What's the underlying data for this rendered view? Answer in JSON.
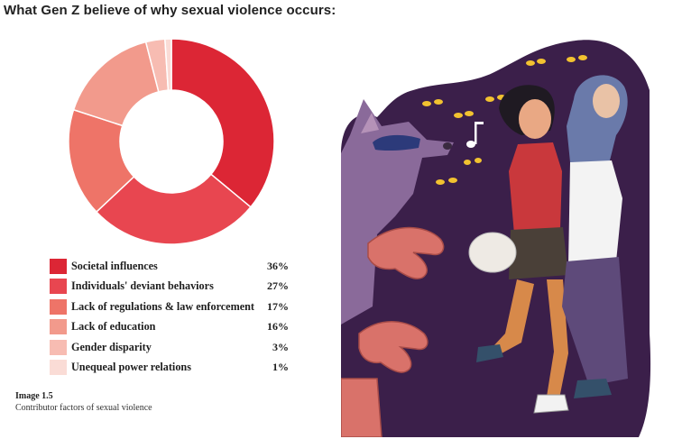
{
  "title": "What Gen Z believe of why sexual violence occurs:",
  "chart_data": {
    "type": "pie",
    "title": "What Gen Z believe of why sexual violence occurs:",
    "categories": [
      "Societal influences",
      "Individuals' deviant behaviors",
      "Lack of regulations & law enforcement",
      "Lack of education",
      "Gender disparity",
      "Unequeal power relations"
    ],
    "values": [
      36,
      27,
      17,
      16,
      3,
      1
    ],
    "labels": [
      "36%",
      "27%",
      "17%",
      "16%",
      "3%",
      "1%"
    ],
    "colors": [
      "#dc2635",
      "#e84650",
      "#ee7468",
      "#f29a8c",
      "#f7bcb2",
      "#fadcd6"
    ],
    "legend_position": "below"
  },
  "caption": {
    "label": "Image 1.5",
    "text": "Contributor factors of sexual violence"
  },
  "illustration": {
    "description_icon": "wolf-predator-illustration"
  },
  "colors": {
    "illustration_background": "#3b1f4a",
    "hand": "#d9726a"
  }
}
